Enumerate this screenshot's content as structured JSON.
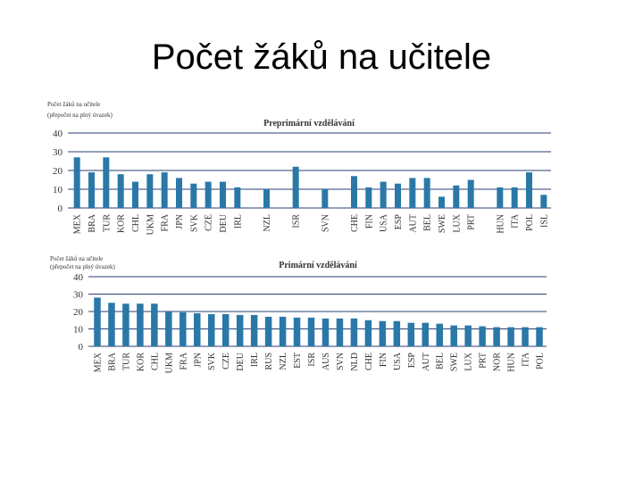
{
  "slide": {
    "title": "Počet žáků na učitele"
  },
  "colors": {
    "bar": "#2a78a8",
    "grid": "#2a3f73"
  },
  "chart_data": [
    {
      "type": "bar",
      "title": "Preprimární vzdělávání",
      "ylabel_line1": "Počet žáků na učitele",
      "ylabel_line2": "(přepočet na plný úvazek)",
      "ylim": [
        0,
        40
      ],
      "yticks": [
        0,
        10,
        20,
        30,
        40
      ],
      "grid": true,
      "categories": [
        "MEX",
        "BRA",
        "TUR",
        "KOR",
        "CHL",
        "UKM",
        "FRA",
        "JPN",
        "SVK",
        "CZE",
        "DEU",
        "IRL",
        "",
        "NZL",
        "",
        "ISR",
        "",
        "SVN",
        "",
        "CHE",
        "FIN",
        "USA",
        "ESP",
        "AUT",
        "BEL",
        "SWE",
        "LUX",
        "PRT",
        "",
        "HUN",
        "ITA",
        "POL",
        "ISL"
      ],
      "values": [
        27,
        19,
        27,
        18,
        14,
        18,
        19,
        16,
        13,
        14,
        14,
        11,
        null,
        10,
        null,
        22,
        null,
        10,
        null,
        17,
        11,
        14,
        13,
        16,
        16,
        6,
        12,
        15,
        null,
        11,
        11,
        19,
        7
      ]
    },
    {
      "type": "bar",
      "title": "Primární vzdělávání",
      "ylabel_line1": "Počet žáků na učitele",
      "ylabel_line2": "(přepočet na plný úvazek)",
      "ylim": [
        0,
        40
      ],
      "yticks": [
        0,
        10,
        20,
        30,
        40
      ],
      "grid": true,
      "categories": [
        "MEX",
        "BRA",
        "TUR",
        "KOR",
        "CHL",
        "UKM",
        "FRA",
        "JPN",
        "SVK",
        "CZE",
        "DEU",
        "IRL",
        "RUS",
        "NZL",
        "EST",
        "ISR",
        "AUS",
        "SVN",
        "NLD",
        "CHE",
        "FIN",
        "USA",
        "ESP",
        "AUT",
        "BEL",
        "SWE",
        "LUX",
        "PRT",
        "NOR",
        "HUN",
        "ITA",
        "POL"
      ],
      "values": [
        28,
        25,
        24.5,
        24.5,
        24.5,
        20,
        19.5,
        19,
        18.5,
        18.5,
        18,
        18,
        17,
        17,
        16.5,
        16.5,
        16,
        16,
        16,
        15,
        14.5,
        14.5,
        13.5,
        13.5,
        13,
        12,
        12,
        11.5,
        11,
        11,
        11,
        11
      ]
    }
  ]
}
